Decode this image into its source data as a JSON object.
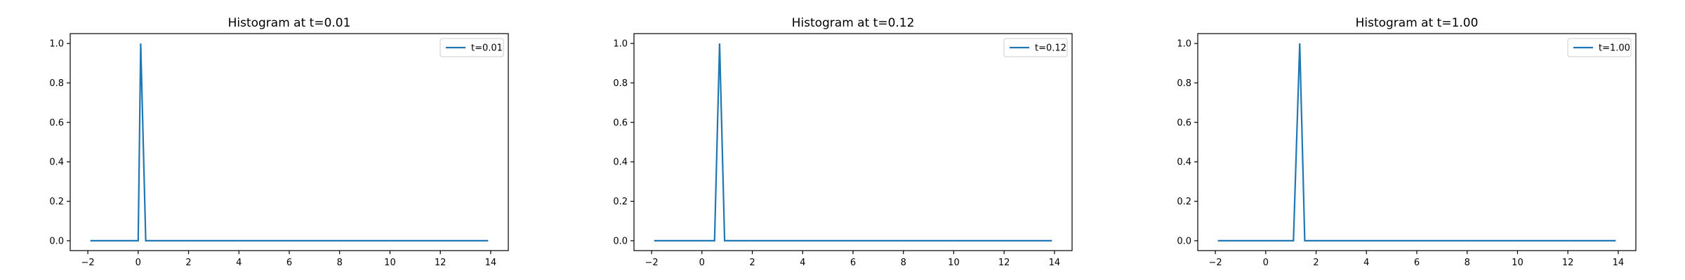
{
  "colors": {
    "series": "#1f77b4",
    "axes": "#000000",
    "background": "#ffffff",
    "legend_border": "#cccccc"
  },
  "chart_data": [
    {
      "type": "line",
      "title": "Histogram at t=0.01",
      "xlabel": "",
      "ylabel": "",
      "xlim": [
        -2.7,
        14.7
      ],
      "ylim": [
        -0.05,
        1.05
      ],
      "xticks": [
        -2,
        0,
        2,
        4,
        6,
        8,
        10,
        12,
        14
      ],
      "yticks": [
        0.0,
        0.2,
        0.4,
        0.6,
        0.8,
        1.0
      ],
      "xtick_labels": [
        "−2",
        "0",
        "2",
        "4",
        "6",
        "8",
        "10",
        "12",
        "14"
      ],
      "ytick_labels": [
        "0.0",
        "0.2",
        "0.4",
        "0.6",
        "0.8",
        "1.0"
      ],
      "grid": false,
      "legend_position": "top-right",
      "series": [
        {
          "name": "t=0.01",
          "x": [
            -1.9,
            0.0,
            0.1,
            0.3,
            13.9
          ],
          "y": [
            0.0,
            0.0,
            1.0,
            0.0,
            0.0
          ]
        }
      ]
    },
    {
      "type": "line",
      "title": "Histogram at t=0.12",
      "xlabel": "",
      "ylabel": "",
      "xlim": [
        -2.7,
        14.7
      ],
      "ylim": [
        -0.05,
        1.05
      ],
      "xticks": [
        -2,
        0,
        2,
        4,
        6,
        8,
        10,
        12,
        14
      ],
      "yticks": [
        0.0,
        0.2,
        0.4,
        0.6,
        0.8,
        1.0
      ],
      "xtick_labels": [
        "−2",
        "0",
        "2",
        "4",
        "6",
        "8",
        "10",
        "12",
        "14"
      ],
      "ytick_labels": [
        "0.0",
        "0.2",
        "0.4",
        "0.6",
        "0.8",
        "1.0"
      ],
      "grid": false,
      "legend_position": "top-right",
      "series": [
        {
          "name": "t=0.12",
          "x": [
            -1.9,
            0.5,
            0.7,
            0.9,
            13.9
          ],
          "y": [
            0.0,
            0.0,
            1.0,
            0.0,
            0.0
          ]
        }
      ]
    },
    {
      "type": "line",
      "title": "Histogram at t=1.00",
      "xlabel": "",
      "ylabel": "",
      "xlim": [
        -2.7,
        14.7
      ],
      "ylim": [
        -0.05,
        1.05
      ],
      "xticks": [
        -2,
        0,
        2,
        4,
        6,
        8,
        10,
        12,
        14
      ],
      "yticks": [
        0.0,
        0.2,
        0.4,
        0.6,
        0.8,
        1.0
      ],
      "xtick_labels": [
        "−2",
        "0",
        "2",
        "4",
        "6",
        "8",
        "10",
        "12",
        "14"
      ],
      "ytick_labels": [
        "0.0",
        "0.2",
        "0.4",
        "0.6",
        "0.8",
        "1.0"
      ],
      "grid": false,
      "legend_position": "top-right",
      "series": [
        {
          "name": "t=1.00",
          "x": [
            -1.9,
            1.1,
            1.35,
            1.55,
            13.9
          ],
          "y": [
            0.0,
            0.0,
            1.0,
            0.0,
            0.0
          ]
        }
      ]
    }
  ]
}
